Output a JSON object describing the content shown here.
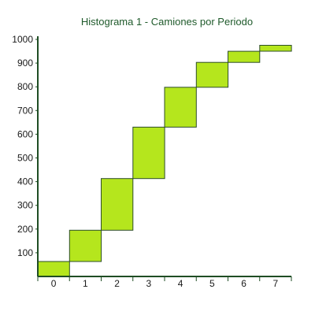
{
  "chart_data": {
    "type": "bar",
    "title": "Histograma 1 - Camiones por Periodo",
    "xlabel": "",
    "ylabel": "",
    "categories": [
      "0",
      "1",
      "2",
      "3",
      "4",
      "5",
      "6",
      "7"
    ],
    "series": [
      {
        "lower": [
          0,
          63,
          195,
          413,
          630,
          798,
          903,
          950
        ],
        "upper": [
          63,
          195,
          413,
          630,
          798,
          903,
          950,
          975
        ]
      }
    ],
    "y_ticks": [
      "100",
      "200",
      "300",
      "400",
      "500",
      "600",
      "700",
      "800",
      "900",
      "1000"
    ],
    "ylim": [
      0,
      1000
    ],
    "grid": false,
    "legend": "none",
    "colors": {
      "bar_fill": "#b5e61d",
      "bar_stroke": "#2d4d2a",
      "axis": "#1f4d24",
      "title": "#1f5a2b"
    }
  }
}
